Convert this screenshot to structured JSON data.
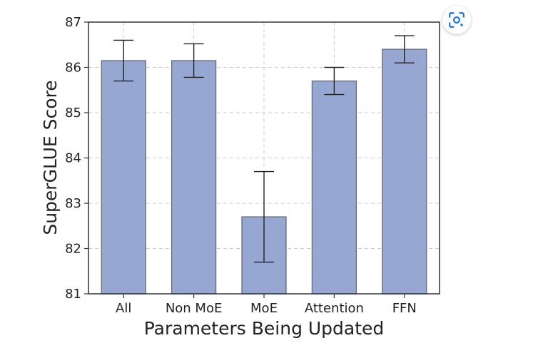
{
  "chart_data": {
    "type": "bar",
    "categories": [
      "All",
      "Non MoE",
      "MoE",
      "Attention",
      "FFN"
    ],
    "values": [
      86.15,
      86.15,
      82.7,
      85.7,
      86.4
    ],
    "errors": [
      0.45,
      0.37,
      1.0,
      0.3,
      0.3
    ],
    "xlabel": "Parameters Being Updated",
    "ylabel": "SuperGLUE Score",
    "ylim": [
      81,
      87
    ],
    "yticks": [
      81,
      82,
      83,
      84,
      85,
      86,
      87
    ],
    "grid": true,
    "colors": {
      "bar_fill": "#96a8d2",
      "bar_stroke": "#666a7a",
      "error_bar": "#222222",
      "grid": "#cccccc",
      "axis": "#333333"
    }
  },
  "ui": {
    "lens_icon": "lens-search-icon"
  }
}
